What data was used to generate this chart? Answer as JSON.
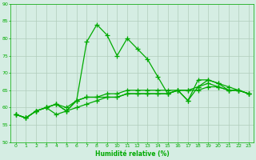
{
  "title": "",
  "xlabel": "Humidité relative (%)",
  "ylabel": "",
  "xlim": [
    -0.5,
    23.5
  ],
  "ylim": [
    50,
    90
  ],
  "yticks": [
    50,
    55,
    60,
    65,
    70,
    75,
    80,
    85,
    90
  ],
  "xticks": [
    0,
    1,
    2,
    3,
    4,
    5,
    6,
    7,
    8,
    9,
    10,
    11,
    12,
    13,
    14,
    15,
    16,
    17,
    18,
    19,
    20,
    21,
    22,
    23
  ],
  "background_color": "#d5ede3",
  "grid_color": "#b0ccbb",
  "line_color": "#00aa00",
  "lines": [
    [
      58,
      57,
      59,
      60,
      61,
      59,
      62,
      79,
      84,
      81,
      75,
      80,
      77,
      74,
      69,
      64,
      65,
      62,
      68,
      68,
      67,
      66,
      65,
      64
    ],
    [
      58,
      57,
      59,
      60,
      61,
      60,
      62,
      63,
      63,
      64,
      64,
      65,
      65,
      65,
      65,
      65,
      65,
      65,
      66,
      67,
      66,
      65,
      65,
      64
    ],
    [
      58,
      57,
      59,
      60,
      58,
      59,
      60,
      61,
      62,
      63,
      63,
      64,
      64,
      64,
      64,
      64,
      65,
      62,
      66,
      68,
      67,
      65,
      65,
      64
    ],
    [
      58,
      57,
      59,
      60,
      61,
      59,
      62,
      63,
      63,
      63,
      63,
      64,
      64,
      64,
      64,
      64,
      65,
      65,
      65,
      66,
      66,
      65,
      65,
      64
    ]
  ]
}
